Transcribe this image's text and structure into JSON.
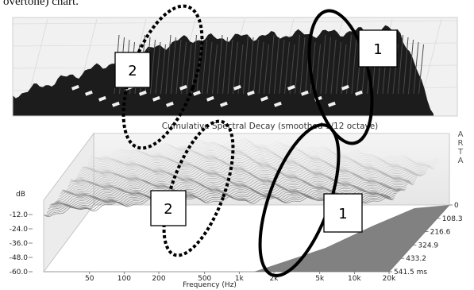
{
  "caption_fragment": "overtone) chart.",
  "top_plot": {
    "annotations": [
      {
        "label": "1",
        "shape": "solid-ellipse"
      },
      {
        "label": "2",
        "shape": "dotted-ellipse"
      }
    ]
  },
  "chart_data": {
    "type": "area",
    "title": "Cumulative Spectral Decay (smoothed 1/12 octave)",
    "brand": [
      "A",
      "R",
      "T",
      "A"
    ],
    "xlabel": "Frequency (Hz)",
    "ylabel": "dB",
    "zlabel_unit": "ms",
    "x_ticks": [
      "50",
      "100",
      "200",
      "500",
      "1k",
      "2k",
      "5k",
      "10k",
      "20k"
    ],
    "x_tick_values": [
      50,
      100,
      200,
      500,
      1000,
      2000,
      5000,
      10000,
      20000
    ],
    "xlim": [
      20,
      20000
    ],
    "x_scale": "log",
    "y_ticks": [
      "-12.0",
      "-24.0",
      "-36.0",
      "-48.0",
      "-60.0"
    ],
    "y_tick_values": [
      -12,
      -24,
      -36,
      -48,
      -60
    ],
    "ylim": [
      -60,
      0
    ],
    "z_ticks": [
      "0",
      "108.3",
      "216.6",
      "324.9",
      "433.2",
      "541.5 ms"
    ],
    "z_tick_values": [
      0,
      108.3,
      216.6,
      324.9,
      433.2,
      541.5
    ],
    "annotations": [
      {
        "label": "1",
        "shape": "solid-ellipse"
      },
      {
        "label": "2",
        "shape": "dotted-ellipse"
      }
    ]
  }
}
